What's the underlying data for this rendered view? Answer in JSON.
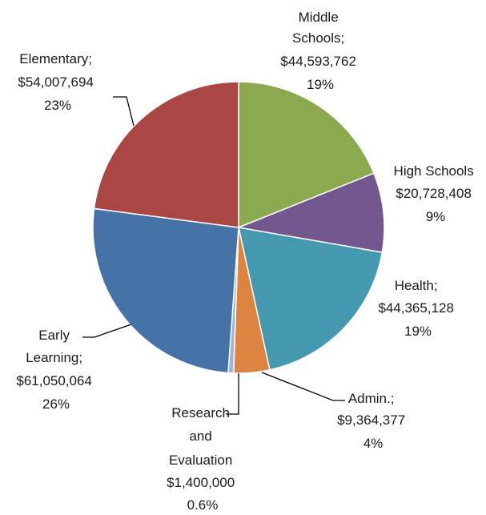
{
  "chart_data": {
    "type": "pie",
    "title": "",
    "start_angle_deg": 90,
    "direction": "clockwise",
    "slices": [
      {
        "label": "Middle Schools",
        "value": 44593762,
        "value_text": "$44,593,762",
        "percent_text": "19%",
        "color": "#8BA94E"
      },
      {
        "label": "High Schools",
        "value": 20728408,
        "value_text": "$20,728,408",
        "percent_text": "9%",
        "color": "#73578F"
      },
      {
        "label": "Health",
        "value": 44365128,
        "value_text": "$44,365,128",
        "percent_text": "19%",
        "color": "#4499B0"
      },
      {
        "label": "Admin.",
        "value": 9364377,
        "value_text": "$9,364,377",
        "percent_text": "4%",
        "color": "#DD8540"
      },
      {
        "label": "Research and Evaluation",
        "value": 1400000,
        "value_text": "$1,400,000",
        "percent_text": "0.6%",
        "color": "#9CB5DA"
      },
      {
        "label": "Early Learning",
        "value": 61050064,
        "value_text": "$61,050,064",
        "percent_text": "26%",
        "color": "#4572A7"
      },
      {
        "label": "Elementary",
        "value": 54007694,
        "value_text": "$54,007,694",
        "percent_text": "23%",
        "color": "#AA4644"
      }
    ]
  },
  "labels": {
    "middle": {
      "line1": "Middle",
      "line2": "Schools;",
      "line3": "$44,593,762",
      "line4": "19%"
    },
    "high": {
      "line1": "High Schools",
      "line2": "$20,728,408",
      "line3": "9%"
    },
    "health": {
      "line1": "Health;",
      "line2": "$44,365,128",
      "line3": "19%"
    },
    "admin": {
      "line1": "Admin.;",
      "line2": "$9,364,377",
      "line3": "4%"
    },
    "research": {
      "line1": "Research",
      "line2": "and",
      "line3": "Evaluation",
      "line4": "$1,400,000",
      "line5": "0.6%"
    },
    "early": {
      "line1": "Early",
      "line2": "Learning;",
      "line3": "$61,050,064",
      "line4": "26%"
    },
    "elementary": {
      "line1": "Elementary;",
      "line2": "$54,007,694",
      "line3": "23%"
    }
  }
}
